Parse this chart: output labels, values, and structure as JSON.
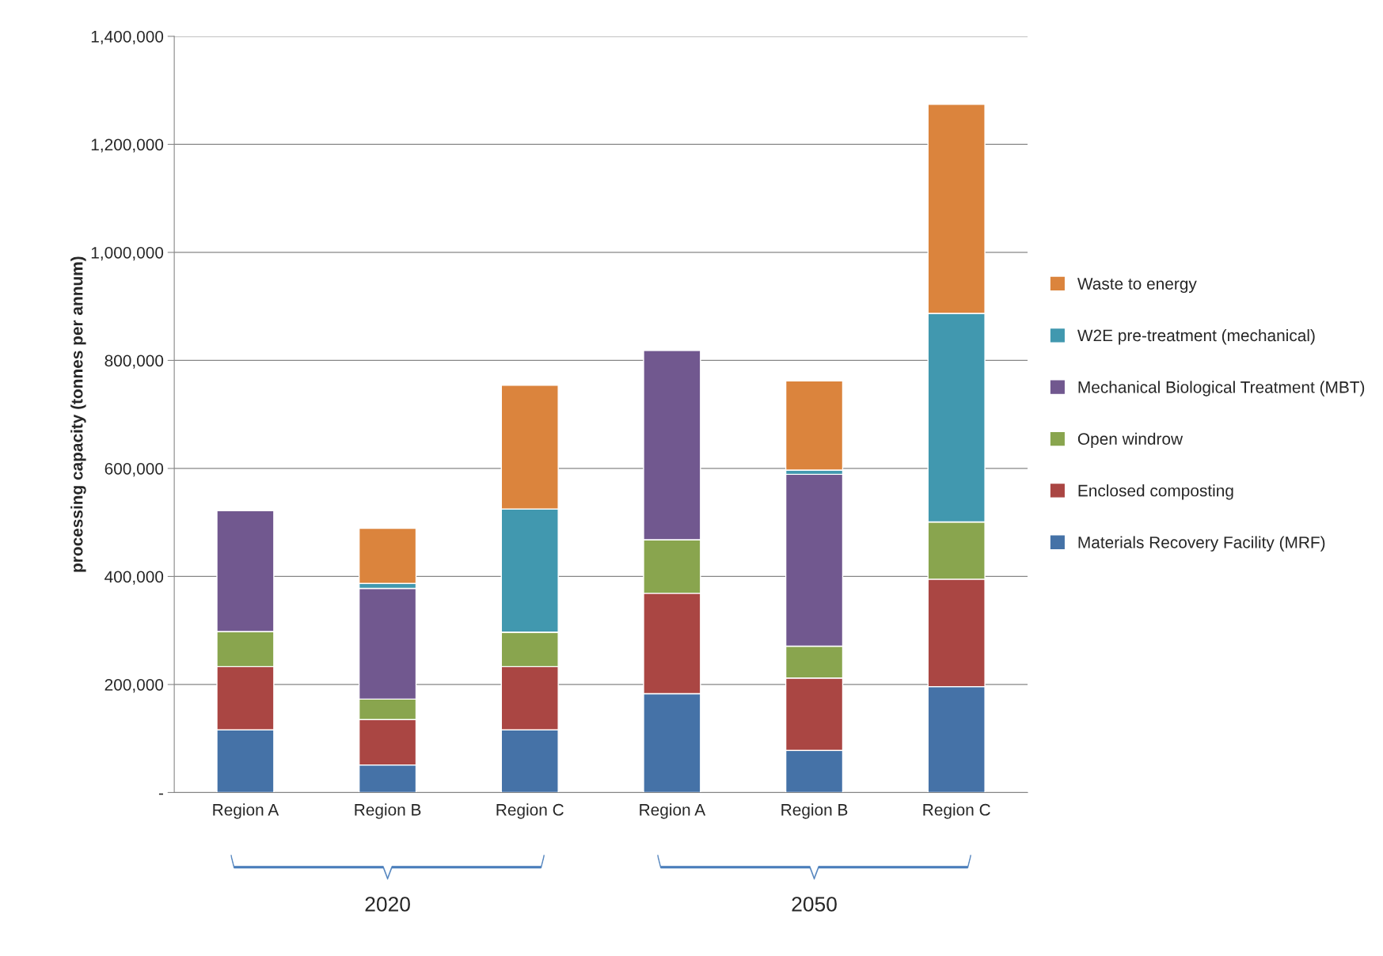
{
  "chart_data": {
    "type": "bar",
    "stacked": true,
    "ylabel": "processing capacity (tonnes per annum)",
    "categories": [
      "Region A",
      "Region B",
      "Region C",
      "Region A",
      "Region B",
      "Region C"
    ],
    "series": [
      {
        "name": "Materials Recovery Facility (MRF)",
        "color": "#4572a7",
        "values": [
          116000,
          51000,
          116000,
          183000,
          78000,
          196000
        ]
      },
      {
        "name": "Enclosed composting",
        "color": "#aa4643",
        "values": [
          117000,
          84000,
          117000,
          186000,
          134000,
          199000
        ]
      },
      {
        "name": "Open windrow",
        "color": "#89a54e",
        "values": [
          65000,
          38000,
          64000,
          99000,
          59000,
          106000
        ]
      },
      {
        "name": "Mechanical Biological Treatment (MBT)",
        "color": "#71588f",
        "values": [
          224000,
          205000,
          null,
          351000,
          318000,
          null
        ]
      },
      {
        "name": "W2E pre-treatment (mechanical)",
        "color": "#4198af",
        "values": [
          null,
          9000,
          228000,
          null,
          8000,
          386000
        ]
      },
      {
        "name": "Waste to energy",
        "color": "#db843d",
        "values": [
          null,
          102000,
          229000,
          null,
          165000,
          387000
        ]
      }
    ],
    "ylim": [
      0,
      1400000
    ],
    "yticks": [
      {
        "value": 0,
        "label": "-"
      },
      {
        "value": 200000,
        "label": "200,000"
      },
      {
        "value": 400000,
        "label": "400,000"
      },
      {
        "value": 600000,
        "label": "600,000"
      },
      {
        "value": 800000,
        "label": "800,000"
      },
      {
        "value": 1000000,
        "label": "1,000,000"
      },
      {
        "value": 1200000,
        "label": "1,200,000"
      },
      {
        "value": 1400000,
        "label": "1,400,000"
      }
    ],
    "grid": "y",
    "legend": "right",
    "annotations": [
      "2020",
      "2050"
    ]
  }
}
